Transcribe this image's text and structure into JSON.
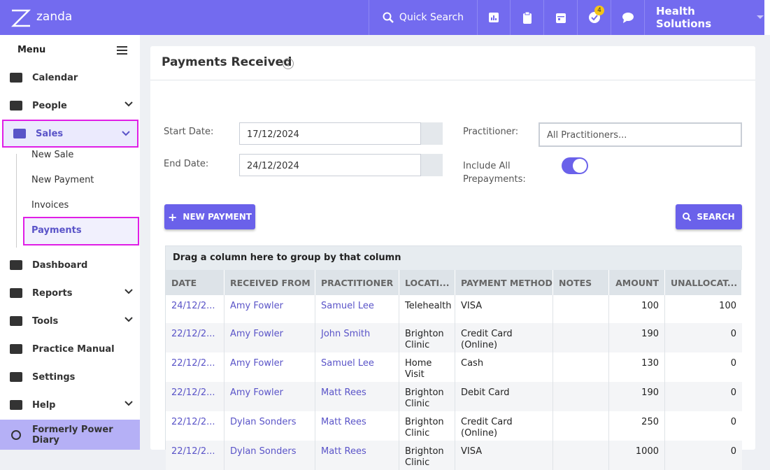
{
  "header": {
    "logo": "zanda",
    "quick_search": "Quick Search",
    "badge": 4,
    "account": "Health Solutions"
  },
  "sidebar": {
    "menu_title": "Menu",
    "items": [
      {
        "label": "Calendar"
      },
      {
        "label": "People",
        "chevron": true
      },
      {
        "label": "Sales",
        "chevron": true,
        "active": true,
        "children": [
          {
            "label": "New Sale"
          },
          {
            "label": "New Payment"
          },
          {
            "label": "Invoices"
          },
          {
            "label": "Payments",
            "active": true
          }
        ]
      },
      {
        "label": "Dashboard"
      },
      {
        "label": "Reports",
        "chevron": true
      },
      {
        "label": "Tools",
        "chevron": true
      },
      {
        "label": "Practice Manual"
      },
      {
        "label": "Settings"
      },
      {
        "label": "Help",
        "chevron": true
      }
    ],
    "footer": "Formerly Power Diary"
  },
  "panel": {
    "title": "Payments Received",
    "start_label": "Start Date:",
    "start_value": "17/12/2024",
    "end_label": "End Date:",
    "end_value": "24/12/2024",
    "practitioner_label": "Practitioner:",
    "practitioner_placeholder": "All Practitioners...",
    "prepay_label": "Include All Prepayments:",
    "prepay_on": true,
    "new_button": "NEW PAYMENT",
    "search_button": "SEARCH"
  },
  "table": {
    "group_hint": "Drag a column here to group by that column",
    "columns": [
      "DATE",
      "RECEIVED FROM",
      "PRACTITIONER",
      "LOCATI...",
      "PAYMENT METHOD",
      "NOTES",
      "AMOUNT",
      "UNALLOCAT..."
    ],
    "rows": [
      {
        "date": "24/12/2...",
        "received_from": "Amy Fowler",
        "practitioner": "Samuel Lee",
        "location": "Telehealth",
        "method": "VISA",
        "amount": 100,
        "unallocated": 100
      },
      {
        "date": "22/12/2...",
        "received_from": "Amy Fowler",
        "practitioner": "John Smith",
        "location": "Brighton Clinic",
        "method": "Credit Card (Online)",
        "amount": 190,
        "unallocated": 0
      },
      {
        "date": "22/12/2...",
        "received_from": "Amy Fowler",
        "practitioner": "Samuel Lee",
        "location": "Home Visit",
        "method": "Cash",
        "amount": 130,
        "unallocated": 0
      },
      {
        "date": "22/12/2...",
        "received_from": "Amy Fowler",
        "practitioner": "Matt Rees",
        "location": "Brighton Clinic",
        "method": "Debit Card",
        "amount": 190,
        "unallocated": 0
      },
      {
        "date": "22/12/2...",
        "received_from": "Dylan Sonders",
        "practitioner": "Matt Rees",
        "location": "Brighton Clinic",
        "method": "Credit Card (Online)",
        "amount": 250,
        "unallocated": 0
      },
      {
        "date": "22/12/2...",
        "received_from": "Dylan Sonders",
        "practitioner": "Matt Rees",
        "location": "Brighton Clinic",
        "method": "VISA",
        "amount": 1000,
        "unallocated": 0
      }
    ]
  }
}
